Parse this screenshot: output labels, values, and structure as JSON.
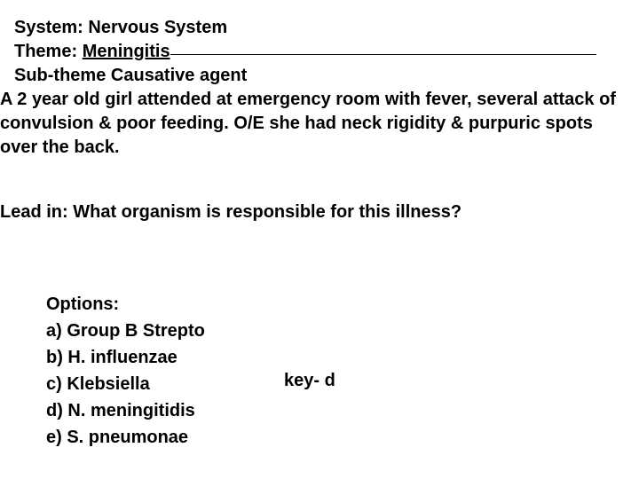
{
  "header": {
    "system_label": "System:",
    "system_value": "Nervous System",
    "theme_label": "Theme:",
    "theme_value": "Meningitis",
    "subtheme_label": "Sub-theme",
    "subtheme_value": "Causative agent"
  },
  "stem": "A 2 year old girl attended at emergency room with fever, several attack of convulsion & poor feeding. O/E she had neck rigidity & purpuric spots over the back.",
  "leadin": "Lead in: What organism is responsible for this illness?",
  "options": {
    "heading": "Options:",
    "a": "a) Group B Strepto",
    "b": "b) H. influenzae",
    "c": "c) Klebsiella",
    "d": "d) N. meningitidis",
    "e": "e) S. pneumonae"
  },
  "key": "key- d",
  "colors": {
    "background": "#ffffff",
    "text": "#000000"
  },
  "font": {
    "family": "Arial",
    "size_pt": 15,
    "weight": "bold"
  }
}
